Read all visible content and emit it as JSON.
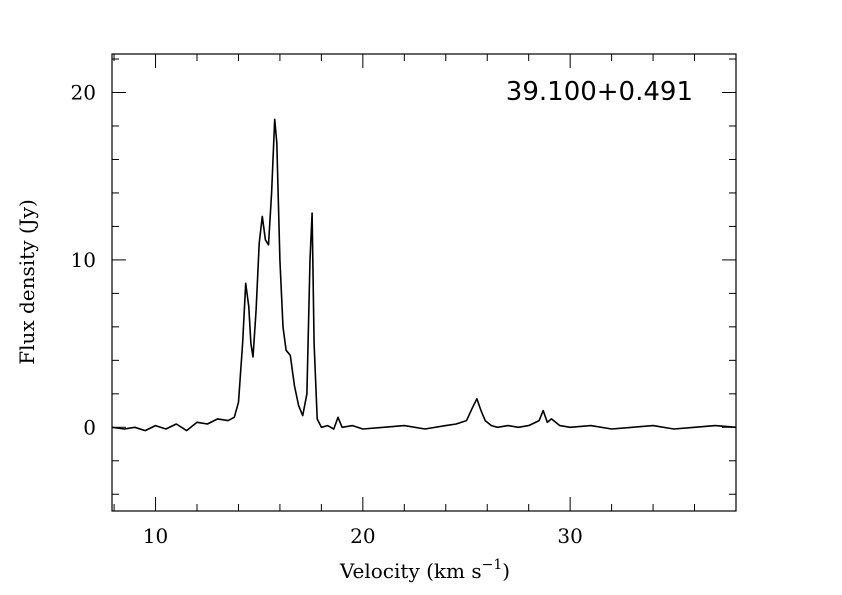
{
  "chart_data": {
    "type": "line",
    "source_label": "39.100+0.491",
    "xlabel": "Velocity (km s",
    "xlabel_superscript": "−1",
    "xlabel_close": ")",
    "ylabel": "Flux density (Jy)",
    "xlim": [
      7.9,
      38.0
    ],
    "ylim": [
      -5.0,
      22.3
    ],
    "x_major_ticks": [
      10,
      20,
      30
    ],
    "x_minor_step": 2,
    "y_major_ticks": [
      0,
      10,
      20
    ],
    "y_minor_step": 2,
    "x_tick_labels": [
      "10",
      "20",
      "30"
    ],
    "y_tick_labels": [
      "0",
      "10",
      "20"
    ],
    "grid": false,
    "series": [
      {
        "x": [
          7.9,
          8.5,
          9.0,
          9.5,
          10.0,
          10.5,
          11.0,
          11.5,
          12.0,
          12.5,
          13.0,
          13.5,
          13.8,
          14.0,
          14.2,
          14.35,
          14.5,
          14.6,
          14.7,
          14.85,
          15.0,
          15.15,
          15.3,
          15.45,
          15.6,
          15.75,
          15.85,
          16.0,
          16.15,
          16.3,
          16.5,
          16.7,
          16.9,
          17.1,
          17.3,
          17.45,
          17.55,
          17.65,
          17.8,
          18.0,
          18.3,
          18.6,
          18.8,
          19.0,
          19.5,
          20.0,
          21.0,
          22.0,
          23.0,
          24.0,
          24.5,
          25.0,
          25.3,
          25.5,
          25.7,
          25.9,
          26.2,
          26.5,
          27.0,
          27.5,
          28.0,
          28.5,
          28.7,
          28.9,
          29.1,
          29.5,
          30.0,
          31.0,
          32.0,
          33.0,
          34.0,
          35.0,
          36.0,
          37.0,
          38.0
        ],
        "y": [
          0.0,
          -0.1,
          0.0,
          -0.2,
          0.1,
          -0.1,
          0.2,
          -0.2,
          0.3,
          0.2,
          0.5,
          0.4,
          0.6,
          1.5,
          5.0,
          8.6,
          7.2,
          5.0,
          4.2,
          7.0,
          11.0,
          12.6,
          11.2,
          10.9,
          14.0,
          18.4,
          17.0,
          10.0,
          6.0,
          4.6,
          4.3,
          2.5,
          1.3,
          0.7,
          2.0,
          10.0,
          12.8,
          5.0,
          0.5,
          0.0,
          0.1,
          -0.1,
          0.6,
          0.0,
          0.1,
          -0.1,
          0.0,
          0.1,
          -0.1,
          0.1,
          0.2,
          0.4,
          1.2,
          1.7,
          1.0,
          0.4,
          0.1,
          0.0,
          0.1,
          0.0,
          0.1,
          0.4,
          1.0,
          0.3,
          0.5,
          0.1,
          0.0,
          0.1,
          -0.1,
          0.0,
          0.1,
          -0.1,
          0.0,
          0.1,
          0.0
        ]
      }
    ]
  }
}
